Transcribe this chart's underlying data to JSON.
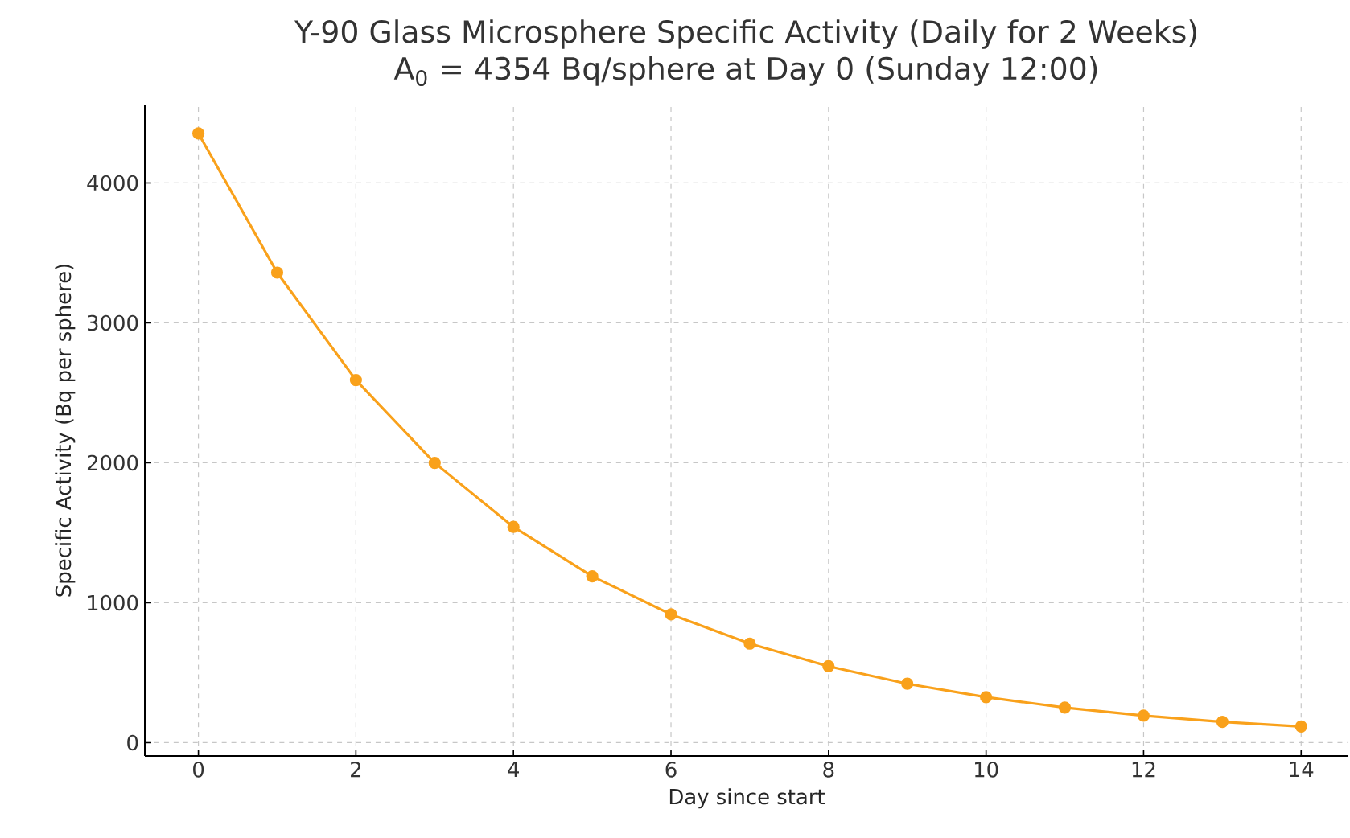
{
  "chart_data": {
    "type": "line",
    "title": "Y-90 Glass Microsphere Specific Activity (Daily for 2 Weeks)",
    "subtitle": "A$_{0}$ = 4354 Bq/sphere at Day 0 (Sunday 12:00)",
    "xlabel": "Day since start",
    "ylabel": "Specific Activity (Bq per sphere)",
    "x": [
      0,
      1,
      2,
      3,
      4,
      5,
      6,
      7,
      8,
      9,
      10,
      11,
      12,
      13,
      14
    ],
    "series": [
      {
        "color": "#f9a11b",
        "values": [
          4354,
          3359,
          2591,
          1999,
          1542,
          1189,
          917,
          708,
          546,
          421,
          325,
          251,
          193,
          149,
          115
        ]
      }
    ],
    "xlim": [
      -0.68,
      14.6
    ],
    "ylim": [
      -95,
      4560
    ],
    "xticks": [
      0,
      2,
      4,
      6,
      8,
      10,
      12,
      14
    ],
    "yticks": [
      0,
      1000,
      2000,
      3000,
      4000
    ],
    "grid": true,
    "marker": "circle",
    "line_style": "solid"
  }
}
